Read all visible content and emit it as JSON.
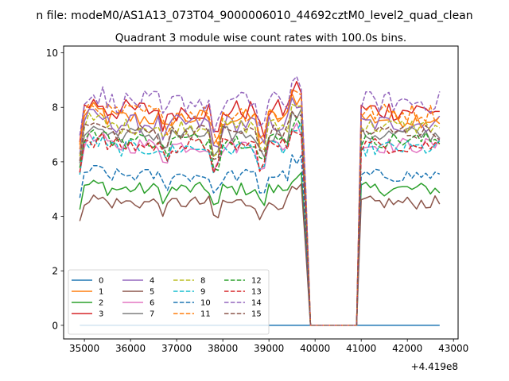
{
  "figure": {
    "suptitle": "n file: modeM0/AS1A13_073T04_9000006010_44692cztM0_level2_quad_clean",
    "title": "Quadrant 3 module wise count rates with 100.0s bins."
  },
  "chart_data": {
    "type": "line",
    "title": "Quadrant 3 module wise count rates with 100.0s bins.",
    "xlabel": "",
    "ylabel": "",
    "x_offset_label": "+4.419e8",
    "xlim": [
      34550,
      43100
    ],
    "ylim": [
      -0.5,
      10.25
    ],
    "xticks": [
      35000,
      36000,
      37000,
      38000,
      39000,
      40000,
      41000,
      42000,
      43000
    ],
    "yticks": [
      0,
      2,
      4,
      6,
      8,
      10
    ],
    "grid": false,
    "legend": {
      "placement": "lower-left",
      "columns": 4
    },
    "x": {
      "start": 34900,
      "step": 100,
      "count": 79,
      "gap": {
        "from": 39900,
        "to": 40900,
        "value": 0
      }
    },
    "series": [
      {
        "name": "0",
        "color": "#1f77b4",
        "dash": "solid",
        "base": 0.0,
        "sd": 0.0
      },
      {
        "name": "1",
        "color": "#ff7f0e",
        "dash": "solid",
        "base": 7.6,
        "sd": 0.35
      },
      {
        "name": "2",
        "color": "#2ca02c",
        "dash": "solid",
        "base": 5.0,
        "sd": 0.25
      },
      {
        "name": "3",
        "color": "#d62728",
        "dash": "solid",
        "base": 7.9,
        "sd": 0.4
      },
      {
        "name": "4",
        "color": "#9467bd",
        "dash": "solid",
        "base": 7.4,
        "sd": 0.35
      },
      {
        "name": "5",
        "color": "#8c564b",
        "dash": "solid",
        "base": 4.5,
        "sd": 0.25
      },
      {
        "name": "6",
        "color": "#e377c2",
        "dash": "solid",
        "base": 6.6,
        "sd": 0.3
      },
      {
        "name": "7",
        "color": "#7f7f7f",
        "dash": "solid",
        "base": 7.0,
        "sd": 0.3
      },
      {
        "name": "8",
        "color": "#bcbd22",
        "dash": "dashed",
        "base": 7.3,
        "sd": 0.3
      },
      {
        "name": "9",
        "color": "#17becf",
        "dash": "dashed",
        "base": 6.5,
        "sd": 0.3
      },
      {
        "name": "10",
        "color": "#1f77b4",
        "dash": "dashed",
        "base": 5.5,
        "sd": 0.25
      },
      {
        "name": "11",
        "color": "#ff7f0e",
        "dash": "dashed",
        "base": 7.8,
        "sd": 0.35
      },
      {
        "name": "12",
        "color": "#2ca02c",
        "dash": "dashed",
        "base": 6.8,
        "sd": 0.3
      },
      {
        "name": "13",
        "color": "#d62728",
        "dash": "dashed",
        "base": 6.6,
        "sd": 0.3
      },
      {
        "name": "14",
        "color": "#9467bd",
        "dash": "dashed",
        "base": 8.2,
        "sd": 0.4
      },
      {
        "name": "15",
        "color": "#8c564b",
        "dash": "dashed",
        "base": 7.1,
        "sd": 0.3
      }
    ]
  }
}
